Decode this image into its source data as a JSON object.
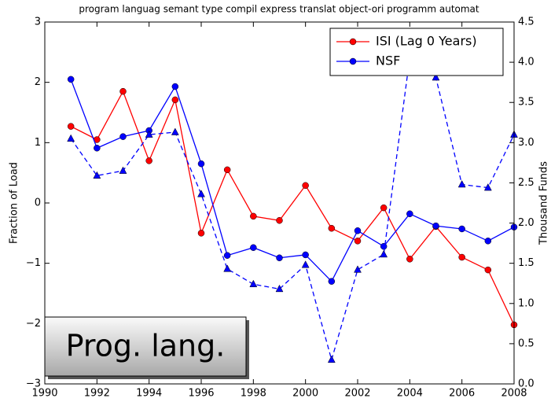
{
  "chart_data": {
    "type": "line",
    "title": "program languag semant type compil express translat object-ori programm automat",
    "ylabel": "Fraction of Load",
    "y2label": "Thousand Funds",
    "annotation": "Prog. lang.",
    "x": [
      1991,
      1992,
      1993,
      1994,
      1995,
      1996,
      1997,
      1998,
      1999,
      2000,
      2001,
      2002,
      2003,
      2004,
      2005,
      2006,
      2007,
      2008
    ],
    "series": [
      {
        "name": "ISI (Lag 0 Years)",
        "color": "#ff0000",
        "marker": "circle",
        "dash": false,
        "values": [
          1.27,
          1.05,
          1.85,
          0.7,
          1.71,
          -0.5,
          0.55,
          -0.22,
          -0.29,
          0.29,
          -0.42,
          -0.63,
          -0.08,
          -0.93,
          -0.39,
          -0.9,
          -1.11,
          -2.02
        ]
      },
      {
        "name": "NSF",
        "color": "#0000ff",
        "marker": "circle",
        "dash": false,
        "values": [
          2.05,
          0.91,
          1.1,
          1.2,
          1.93,
          0.65,
          -0.87,
          -0.74,
          -0.91,
          -0.86,
          -1.3,
          -0.46,
          -0.72,
          -0.18,
          -0.38,
          -0.43,
          -0.63,
          -0.4
        ]
      },
      {
        "color": "#0000ff",
        "marker": "triangle",
        "dash": true,
        "axis": "y2",
        "values": [
          3.05,
          2.59,
          2.65,
          3.1,
          3.13,
          2.36,
          1.43,
          1.24,
          1.18,
          1.48,
          0.3,
          1.42,
          1.61,
          4.06,
          3.81,
          2.48,
          2.44,
          3.1
        ]
      }
    ],
    "xlim": [
      1990,
      2008
    ],
    "xticks": [
      1990,
      1992,
      1994,
      1996,
      1998,
      2000,
      2002,
      2004,
      2006,
      2008
    ],
    "ylim": [
      -3,
      3
    ],
    "yticks": [
      {
        "value": -3,
        "label": "−3"
      },
      {
        "value": -2,
        "label": "−2"
      },
      {
        "value": -1,
        "label": "−1"
      },
      0,
      1,
      2,
      3
    ],
    "y2lim": [
      0,
      4.5
    ],
    "y2ticks": [
      {
        "value": 0,
        "label": "0.0"
      },
      0.5,
      {
        "value": 1,
        "label": "1.0"
      },
      1.5,
      {
        "value": 2,
        "label": "2.0"
      },
      2.5,
      {
        "value": 3,
        "label": "3.0"
      },
      3.5,
      {
        "value": 4,
        "label": "4.0"
      },
      4.5
    ],
    "legend": "upper right"
  }
}
